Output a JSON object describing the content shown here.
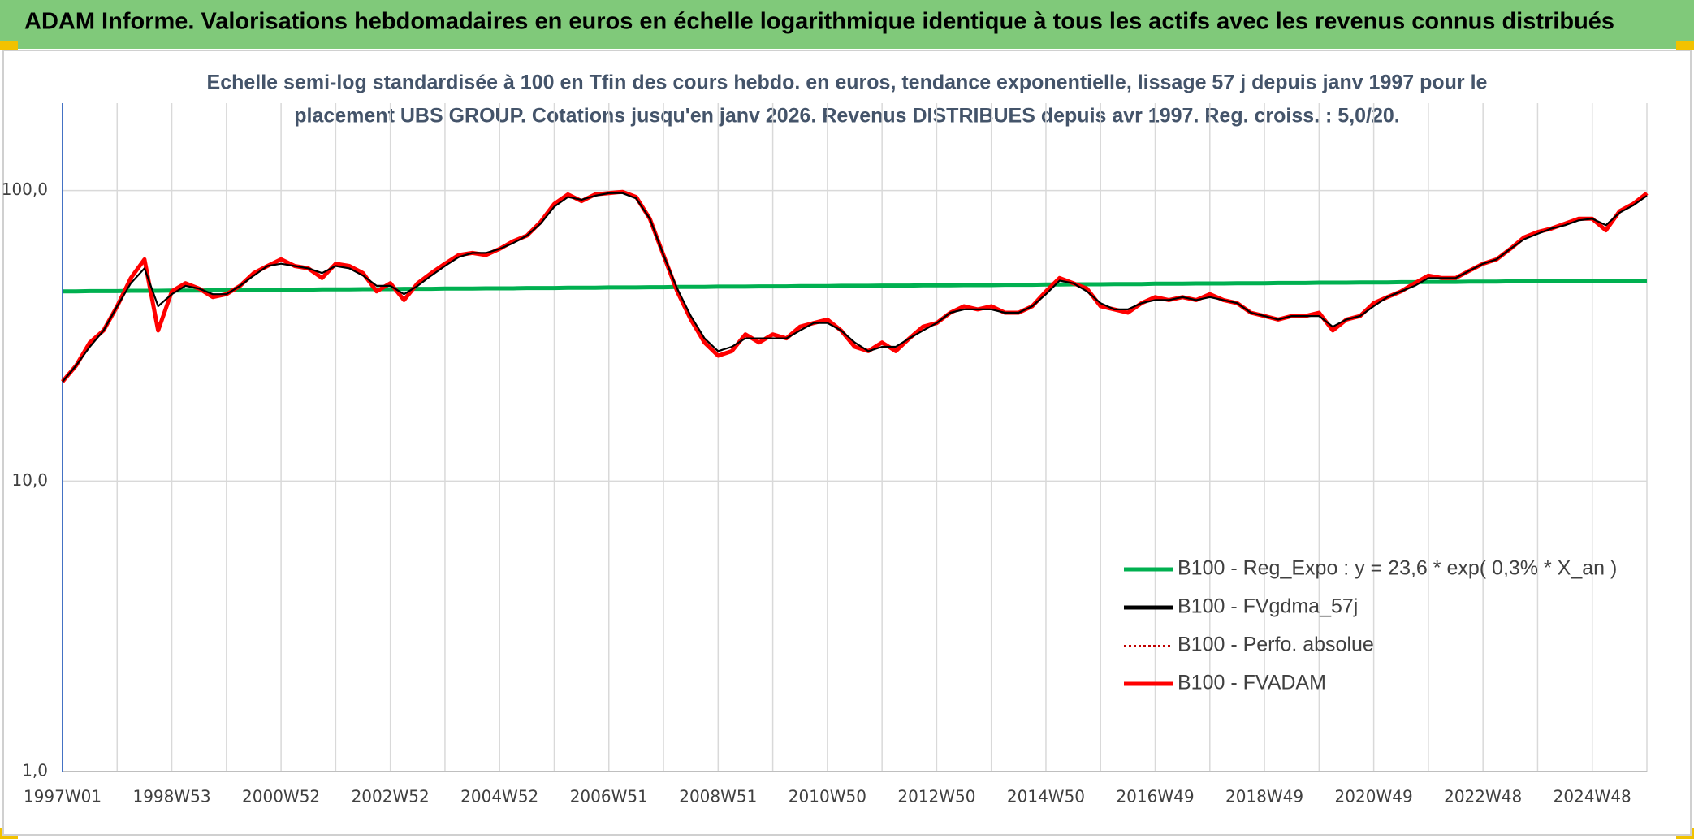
{
  "header": {
    "title": "ADAM Informe. Valorisations hebdomadaires en euros en échelle logarithmique identique à tous les actifs avec les revenus connus distribués"
  },
  "chart_data": {
    "type": "line",
    "title": [
      "Echelle semi-log standardisée à 100 en Tfin des cours hebdo. en euros, tendance exponentielle, lissage 57 j depuis janv 1997 pour le",
      "placement UBS GROUP. Cotations jusqu'en janv 2026. Revenus DISTRIBUES depuis avr 1997. Reg. croiss. : 5,0/20."
    ],
    "log_scale": true,
    "grid": true,
    "legend": "lower right",
    "ylim": [
      1,
      200
    ],
    "yticks": [
      {
        "value": 1,
        "label": "1,0"
      },
      {
        "value": 10,
        "label": "10,0"
      },
      {
        "value": 100,
        "label": "100,0"
      }
    ],
    "categories": [
      "1997W01",
      null,
      null,
      null,
      null,
      null,
      null,
      null,
      "1998W53",
      null,
      null,
      null,
      null,
      null,
      null,
      null,
      "2000W52",
      null,
      null,
      null,
      null,
      null,
      null,
      null,
      "2002W52",
      null,
      null,
      null,
      null,
      null,
      null,
      null,
      "2004W52",
      null,
      null,
      null,
      null,
      null,
      null,
      null,
      "2006W51",
      null,
      null,
      null,
      null,
      null,
      null,
      null,
      "2008W51",
      null,
      null,
      null,
      null,
      null,
      null,
      null,
      "2010W50",
      null,
      null,
      null,
      null,
      null,
      null,
      null,
      "2012W50",
      null,
      null,
      null,
      null,
      null,
      null,
      null,
      "2014W50",
      null,
      null,
      null,
      null,
      null,
      null,
      null,
      "2016W49",
      null,
      null,
      null,
      null,
      null,
      null,
      null,
      "2018W49",
      null,
      null,
      null,
      null,
      null,
      null,
      null,
      "2020W49",
      null,
      null,
      null,
      null,
      null,
      null,
      null,
      "2022W48",
      null,
      null,
      null,
      null,
      null,
      null,
      null,
      "2024W48",
      null,
      null,
      null,
      null
    ],
    "series": [
      {
        "name": "B100 - Reg_Expo : y = 23,6 * exp( 0,3% *  X_an )",
        "color": "#00b050",
        "style": "solid",
        "values": [
          45.0,
          45.0,
          45.1,
          45.1,
          45.1,
          45.2,
          45.2,
          45.2,
          45.3,
          45.3,
          45.3,
          45.4,
          45.4,
          45.4,
          45.5,
          45.5,
          45.6,
          45.6,
          45.6,
          45.7,
          45.7,
          45.7,
          45.8,
          45.8,
          45.8,
          45.9,
          45.9,
          45.9,
          46.0,
          46.0,
          46.0,
          46.1,
          46.1,
          46.1,
          46.2,
          46.2,
          46.2,
          46.3,
          46.3,
          46.3,
          46.4,
          46.4,
          46.4,
          46.5,
          46.5,
          46.6,
          46.6,
          46.6,
          46.7,
          46.7,
          46.7,
          46.8,
          46.8,
          46.8,
          46.9,
          46.9,
          46.9,
          47.0,
          47.0,
          47.0,
          47.1,
          47.1,
          47.1,
          47.2,
          47.2,
          47.2,
          47.3,
          47.3,
          47.3,
          47.4,
          47.4,
          47.4,
          47.5,
          47.5,
          47.6,
          47.6,
          47.6,
          47.7,
          47.7,
          47.7,
          47.8,
          47.8,
          47.8,
          47.9,
          47.9,
          47.9,
          48.0,
          48.0,
          48.0,
          48.1,
          48.1,
          48.1,
          48.2,
          48.2,
          48.2,
          48.3,
          48.3,
          48.3,
          48.4,
          48.4,
          48.5,
          48.5,
          48.5,
          48.6,
          48.6,
          48.6,
          48.7,
          48.7,
          48.7,
          48.8,
          48.8,
          48.8,
          48.9,
          48.9,
          48.9,
          49.0,
          49.0
        ]
      },
      {
        "name": "B100 - FVgdma_57j",
        "color": "#000000",
        "style": "solid",
        "values": [
          22,
          25,
          29,
          33,
          40,
          48,
          54,
          40,
          44,
          47,
          46,
          44,
          44,
          47,
          51,
          55,
          56,
          55,
          54,
          52,
          55,
          54,
          51,
          47,
          47,
          44,
          47,
          51,
          55,
          59,
          61,
          61,
          63,
          66,
          70,
          77,
          88,
          95,
          93,
          96,
          98,
          98,
          94,
          80,
          60,
          46,
          37,
          31,
          28,
          29,
          31,
          31,
          31,
          31,
          33,
          35,
          35,
          33,
          30,
          28,
          29,
          29,
          31,
          33,
          35,
          38,
          39,
          39,
          39,
          38,
          38,
          40,
          44,
          49,
          48,
          45,
          41,
          39,
          39,
          41,
          42,
          42,
          43,
          42,
          43,
          42,
          41,
          38,
          37,
          36,
          37,
          37,
          37,
          34,
          36,
          37,
          40,
          43,
          45,
          47,
          50,
          50,
          50,
          53,
          56,
          58,
          63,
          68,
          71,
          74,
          76,
          79,
          80,
          76,
          84,
          89,
          96
        ]
      },
      {
        "name": "B100 - Perfo. absolue",
        "color": "#c00000",
        "style": "dotted",
        "values": [
          22,
          25,
          30,
          33,
          40,
          50,
          58,
          33,
          45,
          48,
          46,
          43,
          44,
          47,
          52,
          55,
          58,
          55,
          54,
          50,
          56,
          55,
          52,
          45,
          48,
          42,
          48,
          52,
          56,
          60,
          61,
          60,
          63,
          67,
          70,
          78,
          90,
          97,
          92,
          97,
          98,
          99,
          95,
          80,
          60,
          45,
          36,
          30,
          27,
          28,
          32,
          30,
          32,
          31,
          34,
          35,
          36,
          33,
          29,
          28,
          30,
          28,
          31,
          34,
          35,
          38,
          40,
          39,
          40,
          38,
          38,
          40,
          45,
          50,
          48,
          46,
          40,
          39,
          38,
          41,
          43,
          42,
          43,
          42,
          44,
          42,
          41,
          38,
          37,
          36,
          37,
          37,
          38,
          33,
          36,
          37,
          41,
          43,
          45,
          48,
          51,
          50,
          50,
          53,
          56,
          58,
          63,
          69,
          72,
          74,
          77,
          80,
          80,
          73,
          85,
          90,
          98
        ]
      },
      {
        "name": "B100 - FVADAM",
        "color": "#ff0000",
        "style": "solid",
        "values": [
          22,
          25,
          30,
          33,
          40,
          50,
          58,
          33,
          45,
          48,
          46,
          43,
          44,
          47,
          52,
          55,
          58,
          55,
          54,
          50,
          56,
          55,
          52,
          45,
          48,
          42,
          48,
          52,
          56,
          60,
          61,
          60,
          63,
          67,
          70,
          78,
          90,
          97,
          92,
          97,
          98,
          99,
          95,
          80,
          60,
          45,
          36,
          30,
          27,
          28,
          32,
          30,
          32,
          31,
          34,
          35,
          36,
          33,
          29,
          28,
          30,
          28,
          31,
          34,
          35,
          38,
          40,
          39,
          40,
          38,
          38,
          40,
          45,
          50,
          48,
          46,
          40,
          39,
          38,
          41,
          43,
          42,
          43,
          42,
          44,
          42,
          41,
          38,
          37,
          36,
          37,
          37,
          38,
          33,
          36,
          37,
          41,
          43,
          45,
          48,
          51,
          50,
          50,
          53,
          56,
          58,
          63,
          69,
          72,
          74,
          77,
          80,
          80,
          73,
          85,
          90,
          98
        ]
      }
    ]
  }
}
